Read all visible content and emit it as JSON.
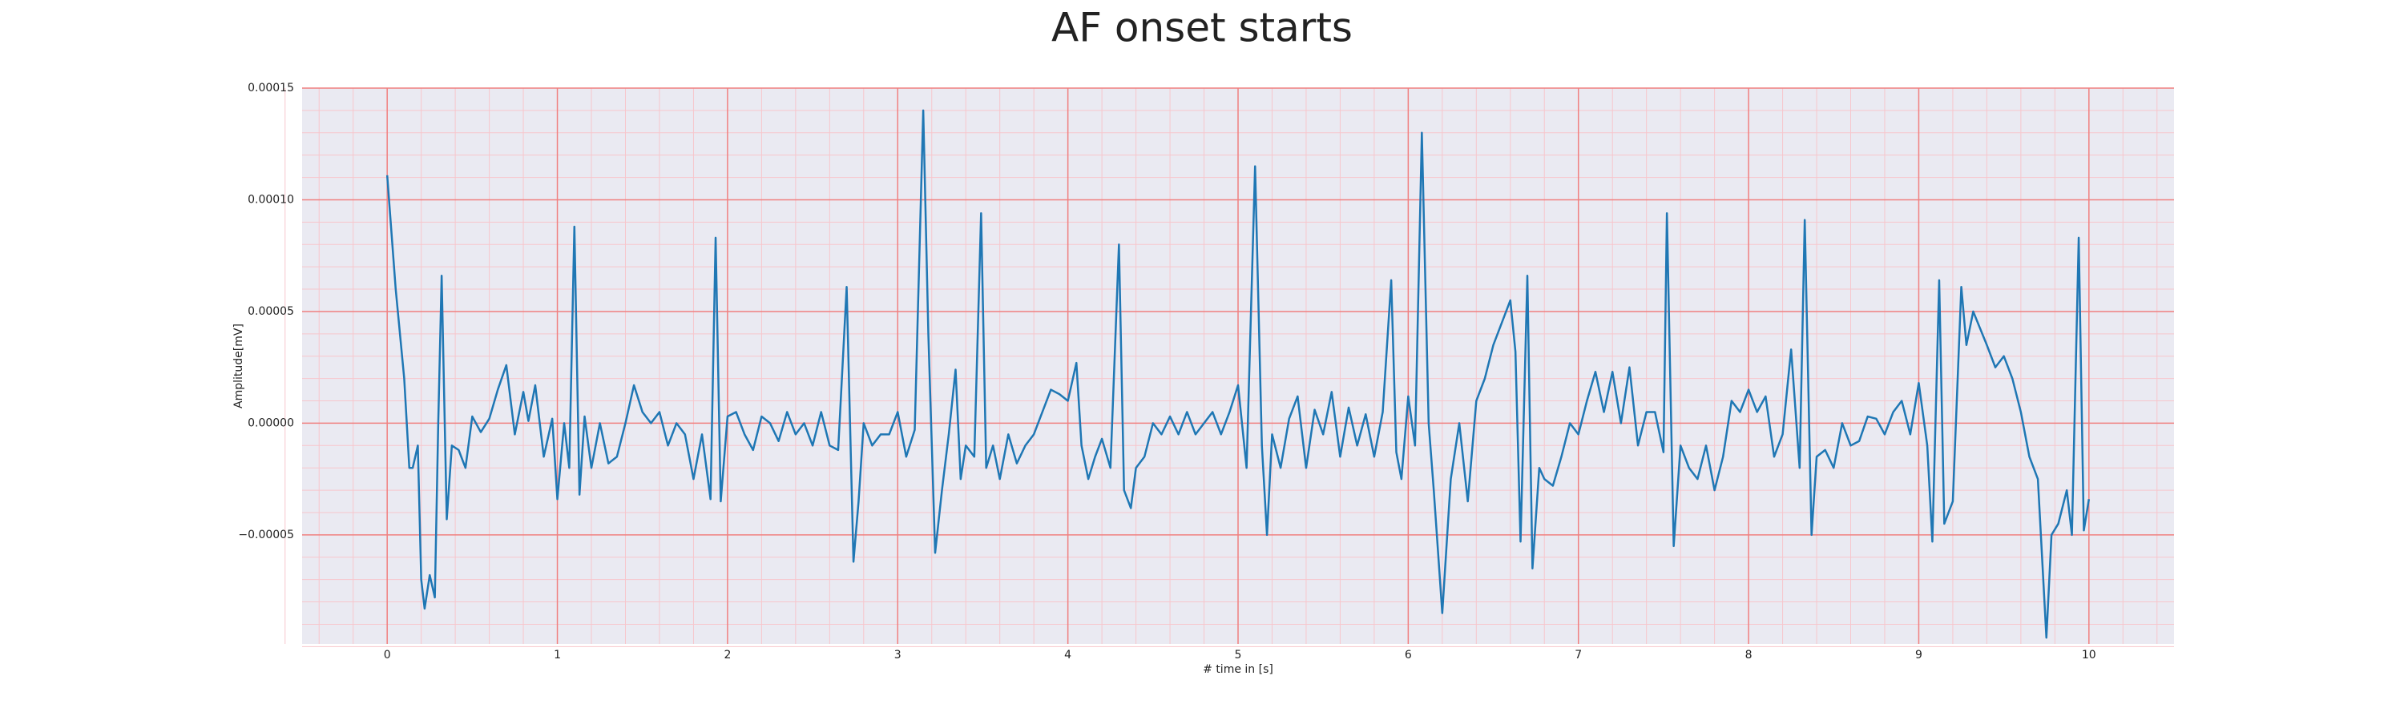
{
  "chart_data": {
    "type": "line",
    "title": "AF onset starts",
    "xlabel": "# time in [s]",
    "ylabel": "Amplitude[mV]",
    "xlim": [
      -0.5,
      10.5
    ],
    "ylim": [
      -9.88e-05,
      0.00015
    ],
    "xticks": [
      0,
      1,
      2,
      3,
      4,
      5,
      6,
      7,
      8,
      9,
      10
    ],
    "yticks": [
      {
        "value": -5e-05,
        "label": "−0.00005"
      },
      {
        "value": 0,
        "label": "0.00000"
      },
      {
        "value": 5e-05,
        "label": "0.00005"
      },
      {
        "value": 0.0001,
        "label": "0.00010"
      },
      {
        "value": 0.00015,
        "label": "0.00015"
      }
    ],
    "grid": true,
    "grid_color": "#f08080",
    "minor_grid": 5,
    "minor_grid_color": "#f7c6cc",
    "background": "#eaeaf2",
    "series": [
      {
        "color": "#1f77b4",
        "x": [
          0.0,
          0.05,
          0.1,
          0.13,
          0.15,
          0.18,
          0.2,
          0.22,
          0.25,
          0.28,
          0.3,
          0.32,
          0.35,
          0.38,
          0.42,
          0.46,
          0.5,
          0.55,
          0.6,
          0.65,
          0.7,
          0.75,
          0.8,
          0.83,
          0.87,
          0.92,
          0.97,
          1.0,
          1.04,
          1.07,
          1.1,
          1.13,
          1.16,
          1.2,
          1.25,
          1.3,
          1.35,
          1.4,
          1.45,
          1.5,
          1.55,
          1.6,
          1.65,
          1.7,
          1.75,
          1.8,
          1.85,
          1.9,
          1.93,
          1.96,
          2.0,
          2.05,
          2.1,
          2.15,
          2.2,
          2.25,
          2.3,
          2.35,
          2.4,
          2.45,
          2.5,
          2.55,
          2.6,
          2.65,
          2.7,
          2.74,
          2.77,
          2.8,
          2.85,
          2.9,
          2.95,
          3.0,
          3.05,
          3.1,
          3.15,
          3.18,
          3.22,
          3.26,
          3.3,
          3.34,
          3.37,
          3.4,
          3.45,
          3.49,
          3.52,
          3.56,
          3.6,
          3.65,
          3.7,
          3.75,
          3.8,
          3.85,
          3.9,
          3.95,
          4.0,
          4.05,
          4.08,
          4.12,
          4.16,
          4.2,
          4.25,
          4.3,
          4.33,
          4.37,
          4.4,
          4.45,
          4.5,
          4.55,
          4.6,
          4.65,
          4.7,
          4.75,
          4.8,
          4.85,
          4.9,
          4.95,
          5.0,
          5.05,
          5.1,
          5.14,
          5.17,
          5.2,
          5.25,
          5.3,
          5.35,
          5.4,
          5.45,
          5.5,
          5.55,
          5.6,
          5.65,
          5.7,
          5.75,
          5.8,
          5.85,
          5.9,
          5.93,
          5.96,
          6.0,
          6.04,
          6.08,
          6.12,
          6.15,
          6.2,
          6.25,
          6.3,
          6.35,
          6.4,
          6.45,
          6.5,
          6.55,
          6.6,
          6.63,
          6.66,
          6.7,
          6.73,
          6.77,
          6.8,
          6.85,
          6.9,
          6.95,
          7.0,
          7.05,
          7.1,
          7.15,
          7.2,
          7.25,
          7.3,
          7.35,
          7.4,
          7.45,
          7.5,
          7.52,
          7.56,
          7.6,
          7.65,
          7.7,
          7.75,
          7.8,
          7.85,
          7.9,
          7.95,
          8.0,
          8.05,
          8.1,
          8.15,
          8.2,
          8.25,
          8.3,
          8.33,
          8.37,
          8.4,
          8.45,
          8.5,
          8.55,
          8.6,
          8.65,
          8.7,
          8.75,
          8.8,
          8.85,
          8.9,
          8.95,
          9.0,
          9.05,
          9.08,
          9.12,
          9.15,
          9.2,
          9.25,
          9.28,
          9.32,
          9.4,
          9.45,
          9.5,
          9.55,
          9.6,
          9.65,
          9.7,
          9.75,
          9.78,
          9.82,
          9.87,
          9.9,
          9.94,
          9.97,
          10.0
        ],
        "values": [
          0.000111,
          6e-05,
          2e-05,
          -2e-05,
          -2e-05,
          -1e-05,
          -7e-05,
          -8.3e-05,
          -6.8e-05,
          -7.8e-05,
          0,
          6.6e-05,
          -4.3e-05,
          -1e-05,
          -1.2e-05,
          -2e-05,
          3e-06,
          -4e-06,
          2e-06,
          1.5e-05,
          2.6e-05,
          -5e-06,
          1.4e-05,
          1e-06,
          1.7e-05,
          -1.5e-05,
          2e-06,
          -3.4e-05,
          0,
          -2e-05,
          8.8e-05,
          -3.2e-05,
          3e-06,
          -2e-05,
          0,
          -1.8e-05,
          -1.5e-05,
          0,
          1.7e-05,
          5e-06,
          0,
          5e-06,
          -1e-05,
          0,
          -5e-06,
          -2.5e-05,
          -5e-06,
          -3.4e-05,
          8.3e-05,
          -3.5e-05,
          3e-06,
          5e-06,
          -5e-06,
          -1.2e-05,
          3e-06,
          0,
          -8e-06,
          5e-06,
          -5e-06,
          0,
          -1e-05,
          5e-06,
          -1e-05,
          -1.2e-05,
          6.1e-05,
          -6.2e-05,
          -3.5e-05,
          0,
          -1e-05,
          -5e-06,
          -5e-06,
          5e-06,
          -1.5e-05,
          -3e-06,
          0.00014,
          4e-05,
          -5.8e-05,
          -3e-05,
          -5e-06,
          2.4e-05,
          -2.5e-05,
          -1e-05,
          -1.5e-05,
          9.4e-05,
          -2e-05,
          -1e-05,
          -2.5e-05,
          -5e-06,
          -1.8e-05,
          -1e-05,
          -5e-06,
          5e-06,
          1.5e-05,
          1.3e-05,
          1e-05,
          2.7e-05,
          -1e-05,
          -2.5e-05,
          -1.5e-05,
          -7e-06,
          -2e-05,
          8e-05,
          -3e-05,
          -3.8e-05,
          -2e-05,
          -1.5e-05,
          0,
          -5e-06,
          3e-06,
          -5e-06,
          5e-06,
          -5e-06,
          0,
          5e-06,
          -5e-06,
          5e-06,
          1.7e-05,
          -2e-05,
          0.000115,
          -1e-05,
          -5e-05,
          -5e-06,
          -2e-05,
          2e-06,
          1.2e-05,
          -2e-05,
          6e-06,
          -5e-06,
          1.4e-05,
          -1.5e-05,
          7e-06,
          -1e-05,
          4e-06,
          -1.5e-05,
          5e-06,
          6.4e-05,
          -1.3e-05,
          -2.5e-05,
          1.2e-05,
          -1e-05,
          0.00013,
          0,
          -3e-05,
          -8.5e-05,
          -2.5e-05,
          0,
          -3.5e-05,
          1e-05,
          2e-05,
          3.5e-05,
          4.5e-05,
          5.5e-05,
          3.2e-05,
          -5.3e-05,
          6.6e-05,
          -6.5e-05,
          -2e-05,
          -2.5e-05,
          -2.8e-05,
          -1.5e-05,
          0,
          -5e-06,
          1e-05,
          2.3e-05,
          5e-06,
          2.3e-05,
          0,
          2.5e-05,
          -1e-05,
          5e-06,
          5e-06,
          -1.3e-05,
          9.4e-05,
          -5.5e-05,
          -1e-05,
          -2e-05,
          -2.5e-05,
          -1e-05,
          -3e-05,
          -1.5e-05,
          1e-05,
          5e-06,
          1.5e-05,
          5e-06,
          1.2e-05,
          -1.5e-05,
          -5e-06,
          3.3e-05,
          -2e-05,
          9.1e-05,
          -5e-05,
          -1.5e-05,
          -1.2e-05,
          -2e-05,
          0,
          -1e-05,
          -8e-06,
          3e-06,
          2e-06,
          -5e-06,
          5e-06,
          1e-05,
          -5e-06,
          1.8e-05,
          -1e-05,
          -5.3e-05,
          6.4e-05,
          -4.5e-05,
          -3.5e-05,
          6.1e-05,
          3.5e-05,
          5e-05,
          3.5e-05,
          2.5e-05,
          3e-05,
          2e-05,
          5e-06,
          -1.5e-05,
          -2.5e-05,
          -9.6e-05,
          -5e-05,
          -4.5e-05,
          -3e-05,
          -5e-05,
          8.3e-05,
          -4.8e-05,
          -3.4e-05
        ]
      }
    ]
  }
}
